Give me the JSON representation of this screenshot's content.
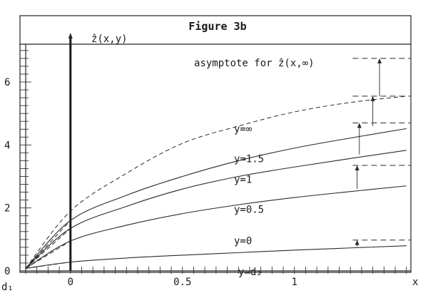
{
  "chart_data": {
    "type": "line",
    "title": "Figure 3b",
    "ylabel": "ẑ(x,y)",
    "xlabel": "x",
    "xlim": [
      -0.2,
      1.52
    ],
    "ylim": [
      0,
      7.2
    ],
    "x_ticks": [
      {
        "value": 0,
        "label": "0"
      },
      {
        "value": 0.5,
        "label": "0.5"
      },
      {
        "value": 1,
        "label": "1"
      }
    ],
    "y_ticks": [
      {
        "value": 0,
        "label": "0"
      },
      {
        "value": 2,
        "label": "2"
      },
      {
        "value": 4,
        "label": "4"
      },
      {
        "value": 6,
        "label": "6"
      }
    ],
    "left_axis_label": "d₁",
    "bottom_axis_label": "y=d₂",
    "asymptote_label": "asymptote for ẑ(x,∞)",
    "asymptote_value": 7.05,
    "series": [
      {
        "name": "y=0",
        "style": "solid",
        "x": [
          -0.2,
          0,
          0.25,
          0.5,
          0.75,
          1,
          1.25,
          1.5
        ],
        "y": [
          0.08,
          0.28,
          0.41,
          0.5,
          0.58,
          0.66,
          0.73,
          0.8
        ],
        "asymptote": 0.98,
        "label_x": 0.73,
        "label_y": 0.85
      },
      {
        "name": "y=0.5",
        "style": "solid",
        "x": [
          -0.2,
          0,
          0.25,
          0.5,
          0.75,
          1,
          1.25,
          1.5
        ],
        "y": [
          0.08,
          0.95,
          1.45,
          1.82,
          2.1,
          2.33,
          2.52,
          2.7
        ],
        "asymptote": 3.35,
        "label_x": 0.73,
        "label_y": 1.85
      },
      {
        "name": "y=1",
        "style": "solid",
        "x": [
          -0.2,
          0,
          0.25,
          0.5,
          0.75,
          1,
          1.25,
          1.5
        ],
        "y": [
          0.08,
          1.35,
          2.05,
          2.6,
          3.0,
          3.3,
          3.57,
          3.83
        ],
        "asymptote": 4.7,
        "label_x": 0.73,
        "label_y": 2.8
      },
      {
        "name": "y=1.5",
        "style": "solid",
        "x": [
          -0.2,
          0,
          0.25,
          0.5,
          0.75,
          1,
          1.25,
          1.5
        ],
        "y": [
          0.08,
          1.6,
          2.4,
          3.0,
          3.5,
          3.9,
          4.22,
          4.52
        ],
        "asymptote": 5.55,
        "label_x": 0.73,
        "label_y": 3.45
      },
      {
        "name": "y=∞",
        "style": "dashed",
        "x": [
          -0.2,
          0,
          0.25,
          0.5,
          0.75,
          1,
          1.25,
          1.5
        ],
        "y": [
          0.08,
          1.9,
          3.1,
          4.05,
          4.6,
          5.05,
          5.35,
          5.55
        ],
        "asymptote": 6.75,
        "label_x": 0.73,
        "label_y": 4.4
      },
      {
        "name": "",
        "style": "dashed",
        "x": [
          -0.2,
          0
        ],
        "y": [
          0.08,
          1.6
        ]
      },
      {
        "name": "",
        "style": "dashed",
        "x": [
          -0.2,
          0
        ],
        "y": [
          0.08,
          1.35
        ]
      },
      {
        "name": "",
        "style": "dashed",
        "x": [
          -0.2,
          0
        ],
        "y": [
          0.08,
          0.95
        ]
      },
      {
        "name": "",
        "style": "dashed",
        "x": [
          -0.2,
          0
        ],
        "y": [
          0.08,
          0.28
        ]
      }
    ],
    "arrows": [
      {
        "x": 1.28,
        "from": 0.78,
        "to": 0.98
      },
      {
        "x": 1.28,
        "from": 2.6,
        "to": 3.35
      },
      {
        "x": 1.29,
        "from": 3.7,
        "to": 4.7
      },
      {
        "x": 1.35,
        "from": 4.6,
        "to": 5.55
      },
      {
        "x": 1.38,
        "from": 5.55,
        "to": 6.75
      }
    ],
    "grid": false,
    "legend": "none"
  }
}
